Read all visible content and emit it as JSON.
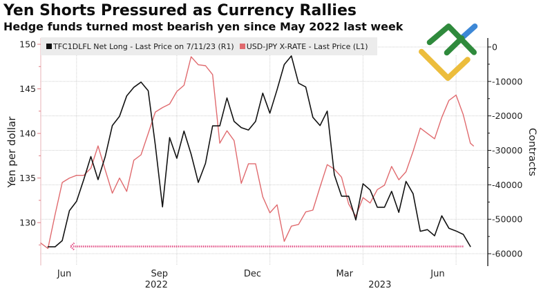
{
  "header": {
    "title": "Yen Shorts Pressured as Currency Rallies",
    "subtitle": "Hedge funds turned most bearish yen since May 2022 last week"
  },
  "legend": {
    "position": "top",
    "items": [
      {
        "label": "TFC1DLFL Net Long - Last Price on 7/11/23 (R1)",
        "color": "#111111"
      },
      {
        "label": "USD-JPY X-RATE - Last Price (L1)",
        "color": "#e06a6e"
      }
    ]
  },
  "axes": {
    "left_title": "Yen per dollar",
    "right_title": "Contracts"
  },
  "watermark": {
    "icon": "lf-logo-icon",
    "colors": {
      "green": "#2f8a3c",
      "blue": "#3d88d6",
      "yellow": "#ecbd3c"
    }
  },
  "chart_data": {
    "type": "line",
    "title": "Yen Shorts Pressured as Currency Rallies",
    "subtitle": "Hedge funds turned most bearish yen since May 2022 last week",
    "xlabel": "",
    "ylabel_left": "Yen per dollar",
    "ylabel_right": "Contracts",
    "xlim": [
      "2022-05-20",
      "2023-07-31"
    ],
    "ylim_left": [
      125.2,
      150.7
    ],
    "ylim_right": [
      -63400,
      2600
    ],
    "yticks_left": [
      130,
      135,
      140,
      145,
      150
    ],
    "yticks_left_minor": [
      127.5,
      132.5,
      137.5,
      142.5,
      147.5
    ],
    "yticks_right": [
      0,
      -10000,
      -20000,
      -30000,
      -40000,
      -50000,
      -60000
    ],
    "yticks_right_minor": [
      -5000,
      -15000,
      -25000,
      -35000,
      -45000,
      -55000
    ],
    "x_ticks": [
      {
        "label": "Jun",
        "date": "2022-06-12"
      },
      {
        "label": "Sep",
        "date": "2022-09-13"
      },
      {
        "label": "Dec",
        "date": "2022-12-13"
      },
      {
        "label": "Mar",
        "date": "2023-03-13"
      },
      {
        "label": "Jun",
        "date": "2023-06-12"
      }
    ],
    "x_year_labels": [
      {
        "label": "2022"
      },
      {
        "label": "2023"
      }
    ],
    "x_gridlines": [
      "2022-06-24",
      "2022-09-30",
      "2022-12-30",
      "2023-03-31",
      "2023-06-30"
    ],
    "grid": {
      "horizontal": true,
      "vertical": true
    },
    "legend_position": "top",
    "x": [
      "2022-05-20",
      "2022-05-27",
      "2022-06-03",
      "2022-06-10",
      "2022-06-17",
      "2022-06-24",
      "2022-07-01",
      "2022-07-08",
      "2022-07-15",
      "2022-07-22",
      "2022-07-29",
      "2022-08-05",
      "2022-08-12",
      "2022-08-19",
      "2022-08-26",
      "2022-09-02",
      "2022-09-09",
      "2022-09-16",
      "2022-09-23",
      "2022-09-30",
      "2022-10-07",
      "2022-10-14",
      "2022-10-21",
      "2022-10-28",
      "2022-11-04",
      "2022-11-11",
      "2022-11-18",
      "2022-11-25",
      "2022-12-02",
      "2022-12-09",
      "2022-12-16",
      "2022-12-23",
      "2022-12-30",
      "2023-01-06",
      "2023-01-13",
      "2023-01-20",
      "2023-01-27",
      "2023-02-03",
      "2023-02-10",
      "2023-02-17",
      "2023-02-24",
      "2023-03-03",
      "2023-03-10",
      "2023-03-17",
      "2023-03-24",
      "2023-03-31",
      "2023-04-07",
      "2023-04-14",
      "2023-04-21",
      "2023-04-28",
      "2023-05-05",
      "2023-05-12",
      "2023-05-19",
      "2023-05-26",
      "2023-06-02",
      "2023-06-09",
      "2023-06-16",
      "2023-06-23",
      "2023-06-30",
      "2023-07-07",
      "2023-07-14",
      "2023-07-17"
    ],
    "series": [
      {
        "id": "net-long",
        "name": "TFC1DLFL Net Long - Last Price on 7/11/23 (R1)",
        "axis": "right",
        "color": "#111111",
        "start_index": 1,
        "values": [
          -58000,
          -58000,
          -56200,
          -47500,
          -44800,
          -38500,
          -31800,
          -38500,
          -31800,
          -22800,
          -20100,
          -14200,
          -11700,
          -10200,
          -12700,
          -28500,
          -46400,
          -26300,
          -32300,
          -24400,
          -31100,
          -39300,
          -33800,
          -22900,
          -22900,
          -14800,
          -21600,
          -23400,
          -24100,
          -21600,
          -13400,
          -19200,
          -12400,
          -5100,
          -2600,
          -10500,
          -11600,
          -20400,
          -22800,
          -18600,
          -37100,
          -43300,
          -43300,
          -50200,
          -39700,
          -41500,
          -46500,
          -46500,
          -41900,
          -48000,
          -39000,
          -42600,
          -53500,
          -53000,
          -54800,
          -49000,
          -52600,
          -53400,
          -54400,
          -57900
        ]
      },
      {
        "id": "usd-jpy",
        "name": "USD-JPY X-RATE - Last Price (L1)",
        "axis": "left",
        "color": "#e06a6e",
        "start_index": 0,
        "values": [
          127.7,
          127.1,
          130.9,
          134.5,
          135.0,
          135.3,
          135.3,
          136.1,
          138.6,
          135.9,
          133.3,
          135.0,
          133.5,
          137.0,
          137.6,
          140.0,
          142.4,
          142.9,
          143.3,
          144.7,
          145.4,
          148.6,
          147.7,
          147.6,
          146.6,
          138.9,
          140.3,
          139.2,
          134.4,
          136.6,
          136.6,
          132.9,
          131.1,
          132.0,
          127.9,
          129.6,
          129.8,
          131.2,
          131.4,
          134.0,
          136.5,
          136.0,
          135.1,
          132.1,
          130.7,
          132.8,
          132.2,
          133.7,
          134.2,
          136.3,
          134.8,
          135.7,
          138.0,
          140.6,
          140.0,
          139.4,
          141.8,
          143.7,
          144.3,
          142.1,
          138.9,
          138.6
        ]
      }
    ],
    "annotations": [
      {
        "type": "dotted-arrow",
        "direction": "left",
        "axis": "right",
        "value": -57900,
        "from": "2023-07-07",
        "to": "2022-06-18",
        "color": "#e0457f"
      }
    ]
  }
}
